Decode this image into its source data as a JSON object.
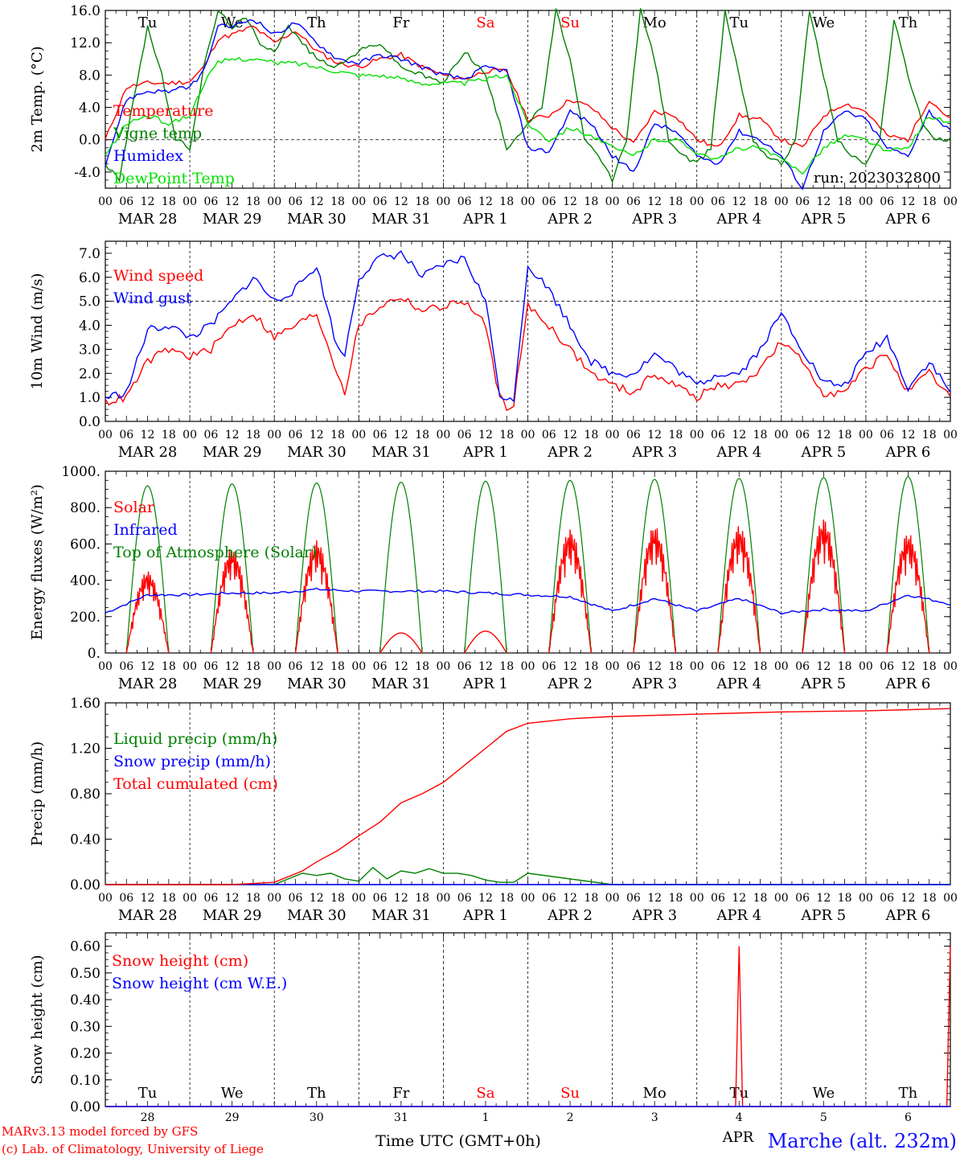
{
  "run_label": "run: 2023032800",
  "footer": {
    "model_line1": "MARv3.13 model forced by GFS",
    "model_line2": "(c) Lab. of Climatology, University of Liege",
    "xlabel": "Time UTC (GMT+0h)",
    "station": "Marche (alt. 232m)",
    "month_label": "APR"
  },
  "colors": {
    "red": "#ff0000",
    "green": "#008000",
    "blue": "#0000ff",
    "lightgreen": "#00e000",
    "weekend": "#ff0000",
    "axis": "#000000"
  },
  "time_axis": {
    "hour_labels": [
      "00",
      "06",
      "12",
      "18"
    ],
    "end_label": "00",
    "days": [
      {
        "date": "MAR 28",
        "num": "28",
        "weekday": "Tu",
        "weekend": false
      },
      {
        "date": "MAR 29",
        "num": "29",
        "weekday": "We",
        "weekend": false
      },
      {
        "date": "MAR 30",
        "num": "30",
        "weekday": "Th",
        "weekend": false
      },
      {
        "date": "MAR 31",
        "num": "31",
        "weekday": "Fr",
        "weekend": false
      },
      {
        "date": "APR  1",
        "num": "1",
        "weekday": "Sa",
        "weekend": true
      },
      {
        "date": "APR  2",
        "num": "2",
        "weekday": "Su",
        "weekend": true
      },
      {
        "date": "APR  3",
        "num": "3",
        "weekday": "Mo",
        "weekend": false
      },
      {
        "date": "APR  4",
        "num": "4",
        "weekday": "Tu",
        "weekend": false
      },
      {
        "date": "APR  5",
        "num": "5",
        "weekday": "We",
        "weekend": false
      },
      {
        "date": "APR  6",
        "num": "6",
        "weekday": "Th",
        "weekend": false
      }
    ]
  },
  "chart_data": [
    {
      "type": "line",
      "id": "temp",
      "ylabel": "2m Temp. (°C)",
      "ylim": [
        -6,
        16
      ],
      "yticks": [
        -4,
        0,
        4,
        8,
        12,
        16
      ],
      "ytick_labels": [
        "-4.0",
        "0.0",
        "4.0",
        "8.0",
        "12.0",
        "16.0"
      ],
      "ref_line": 0,
      "x_unit": "hours since MAR 28 00 UTC",
      "series": [
        {
          "name": "Temperature",
          "color": "red",
          "x": [
            0,
            6,
            12,
            18,
            24,
            28,
            32,
            36,
            42,
            48,
            54,
            60,
            66,
            72,
            78,
            84,
            90,
            96,
            102,
            108,
            114,
            120,
            126,
            132,
            138,
            144,
            150,
            156,
            162,
            168,
            174,
            180,
            186,
            192,
            198,
            204,
            210,
            216,
            222,
            228,
            234,
            240
          ],
          "y": [
            0,
            6.5,
            7,
            7,
            7.2,
            9,
            12.5,
            13,
            14,
            12,
            13.5,
            11,
            9.5,
            9,
            10,
            10.5,
            9,
            8,
            7.5,
            8.5,
            8.5,
            2.5,
            3,
            5,
            4,
            1.5,
            -0.5,
            3.5,
            3,
            0,
            -1,
            3,
            2.5,
            0,
            -1,
            3,
            4.5,
            3.5,
            0.5,
            0,
            5,
            2.5
          ]
        },
        {
          "name": "Vigne temp",
          "color": "green",
          "x": [
            0,
            4,
            8,
            12,
            16,
            20,
            24,
            28,
            32,
            36,
            40,
            44,
            48,
            52,
            56,
            60,
            66,
            72,
            78,
            84,
            90,
            96,
            102,
            108,
            114,
            120,
            124,
            128,
            132,
            136,
            140,
            144,
            148,
            152,
            156,
            160,
            164,
            168,
            172,
            176,
            180,
            184,
            188,
            192,
            196,
            200,
            204,
            208,
            212,
            216,
            220,
            224,
            228,
            232,
            236,
            240
          ],
          "y": [
            -3,
            -5,
            5,
            14,
            8,
            0,
            -1,
            9,
            16,
            14,
            15,
            12,
            11,
            14,
            12,
            10,
            9,
            11,
            12,
            9,
            8,
            7,
            11,
            8,
            -1,
            2,
            4,
            16,
            10,
            0,
            -2,
            -5,
            0,
            16,
            10,
            0,
            -2,
            -3,
            -1,
            16,
            8,
            0,
            -2,
            -3,
            0,
            16,
            8,
            0,
            -2,
            -3,
            0,
            15,
            8,
            2,
            0,
            0
          ]
        },
        {
          "name": "Humidex",
          "color": "blue",
          "x": [
            0,
            6,
            12,
            18,
            24,
            28,
            32,
            36,
            42,
            48,
            54,
            60,
            66,
            72,
            78,
            84,
            90,
            96,
            102,
            108,
            114,
            120,
            126,
            132,
            138,
            144,
            150,
            156,
            162,
            168,
            174,
            180,
            186,
            192,
            198,
            204,
            210,
            216,
            222,
            228,
            234,
            240
          ],
          "y": [
            -3,
            5,
            6,
            6,
            6.5,
            8.5,
            14,
            14,
            15,
            13,
            14.5,
            12,
            10,
            9.5,
            10.5,
            10,
            9,
            8,
            7.5,
            9,
            8.5,
            -1,
            -1.5,
            3.5,
            2,
            -2,
            -4,
            2,
            1,
            -2,
            -3,
            1,
            0,
            -2,
            -6,
            1,
            3.5,
            2.5,
            -1,
            -2,
            3.5,
            1
          ]
        },
        {
          "name": "DewPoint Temp",
          "color": "lightgreen",
          "x": [
            0,
            6,
            12,
            18,
            24,
            28,
            32,
            36,
            42,
            48,
            54,
            60,
            66,
            72,
            78,
            84,
            90,
            96,
            102,
            108,
            114,
            120,
            126,
            132,
            138,
            144,
            150,
            156,
            162,
            168,
            174,
            180,
            186,
            192,
            198,
            204,
            210,
            216,
            222,
            228,
            234,
            240
          ],
          "y": [
            -2,
            2,
            3,
            2,
            3,
            7,
            9.5,
            10,
            10,
            9.5,
            9.5,
            9,
            8.5,
            8,
            8,
            7.5,
            7,
            7,
            7,
            7.5,
            8,
            2,
            0,
            1.5,
            0.5,
            -1,
            -2,
            0,
            0,
            -1.5,
            -2.5,
            -1,
            -1,
            -2.5,
            -4,
            -1,
            0.5,
            0,
            -1.5,
            -1,
            3,
            2
          ]
        }
      ]
    },
    {
      "type": "line",
      "id": "wind",
      "ylabel": "10m Wind (m/s)",
      "ylim": [
        0,
        7.5
      ],
      "yticks": [
        0,
        1,
        2,
        3,
        4,
        5,
        6,
        7
      ],
      "ytick_labels": [
        "0.0",
        "1.0",
        "2.0",
        "3.0",
        "4.0",
        "5.0",
        "6.0",
        "7.0"
      ],
      "ref_line": 5,
      "x_unit": "hours since MAR 28 00 UTC",
      "series": [
        {
          "name": "Wind speed",
          "color": "red",
          "x": [
            0,
            6,
            12,
            18,
            24,
            30,
            36,
            42,
            48,
            54,
            60,
            66,
            68,
            72,
            78,
            84,
            90,
            96,
            102,
            108,
            112,
            114,
            116,
            120,
            126,
            132,
            138,
            144,
            150,
            156,
            162,
            168,
            174,
            180,
            186,
            192,
            198,
            204,
            210,
            216,
            222,
            228,
            234,
            240
          ],
          "y": [
            0.8,
            1,
            2.5,
            3,
            2.7,
            3,
            4,
            4.5,
            3.5,
            4,
            4.5,
            2,
            1.2,
            4,
            4.8,
            5.2,
            4.6,
            4.8,
            5,
            4,
            1,
            0.6,
            0.8,
            4.8,
            4,
            3,
            2,
            1.5,
            1.2,
            2,
            1.5,
            1,
            1.5,
            1.5,
            2.2,
            3.3,
            2.5,
            1.2,
            1.2,
            2.2,
            2.8,
            1.2,
            2,
            1
          ]
        },
        {
          "name": "Wind gust",
          "color": "blue",
          "x": [
            0,
            6,
            12,
            18,
            24,
            30,
            36,
            42,
            48,
            54,
            60,
            66,
            68,
            72,
            78,
            84,
            90,
            96,
            102,
            108,
            112,
            114,
            116,
            120,
            126,
            132,
            138,
            144,
            150,
            156,
            162,
            168,
            174,
            180,
            186,
            192,
            198,
            204,
            210,
            216,
            222,
            228,
            234,
            240
          ],
          "y": [
            1,
            1.2,
            3.8,
            4,
            3.5,
            4,
            5,
            6,
            5,
            5.5,
            6.5,
            3,
            2.8,
            6,
            6.8,
            7,
            6,
            6.5,
            6.8,
            5,
            1.2,
            0.8,
            1,
            6.5,
            5.5,
            4,
            2.5,
            2,
            2,
            2.8,
            2.2,
            1.5,
            2,
            2,
            3,
            4.5,
            3,
            1.6,
            1.5,
            2.8,
            3.5,
            1.4,
            2.5,
            1.2
          ]
        }
      ]
    },
    {
      "type": "line",
      "id": "energy",
      "ylabel": "Energy fluxes (W/m²)",
      "ylim": [
        0,
        1000
      ],
      "yticks": [
        0,
        200,
        400,
        600,
        800,
        1000
      ],
      "ytick_labels": [
        "0.",
        "200.",
        "400.",
        "600.",
        "800.",
        "1000."
      ],
      "ref_line": null,
      "x_unit": "hours since MAR 28 00 UTC",
      "toa_peaks": [
        920,
        930,
        935,
        940,
        945,
        950,
        955,
        960,
        965,
        970
      ],
      "solar_peaks": [
        450,
        580,
        620,
        110,
        120,
        680,
        700,
        700,
        740,
        660
      ],
      "series": [
        {
          "name": "Solar",
          "color": "red"
        },
        {
          "name": "Infrared",
          "color": "blue",
          "x": [
            0,
            12,
            24,
            36,
            48,
            60,
            72,
            84,
            96,
            108,
            120,
            132,
            144,
            156,
            168,
            180,
            192,
            204,
            216,
            228,
            240
          ],
          "y": [
            220,
            320,
            320,
            330,
            330,
            350,
            340,
            340,
            340,
            330,
            320,
            310,
            230,
            300,
            230,
            300,
            220,
            240,
            230,
            320,
            270
          ]
        },
        {
          "name": "Top of Atmosphere (Solar)",
          "color": "green"
        }
      ]
    },
    {
      "type": "line",
      "id": "precip",
      "ylabel": "Precip (mm/h)",
      "ylim": [
        0,
        1.6
      ],
      "yticks": [
        0,
        0.4,
        0.8,
        1.2,
        1.6
      ],
      "ytick_labels": [
        "0.00",
        "0.40",
        "0.80",
        "1.20",
        "1.60"
      ],
      "ref_line": null,
      "x_unit": "hours since MAR 28 00 UTC",
      "series": [
        {
          "name": "Liquid precip (mm/h)",
          "color": "green",
          "x": [
            0,
            48,
            52,
            56,
            60,
            64,
            68,
            72,
            76,
            80,
            84,
            88,
            92,
            96,
            100,
            104,
            108,
            112,
            116,
            120,
            144,
            240
          ],
          "y": [
            0,
            0,
            0.05,
            0.1,
            0.08,
            0.1,
            0.05,
            0.03,
            0.15,
            0.05,
            0.12,
            0.1,
            0.14,
            0.1,
            0.1,
            0.08,
            0.04,
            0.02,
            0.02,
            0.1,
            0,
            0
          ]
        },
        {
          "name": "Snow precip (mm/h)",
          "color": "blue",
          "x": [
            0,
            240
          ],
          "y": [
            0,
            0
          ]
        },
        {
          "name": "Total cumulated (cm)",
          "color": "red",
          "x": [
            0,
            36,
            48,
            56,
            60,
            66,
            72,
            78,
            84,
            90,
            96,
            102,
            108,
            114,
            120,
            132,
            144,
            168,
            192,
            216,
            240
          ],
          "y": [
            0,
            0,
            0.02,
            0.12,
            0.2,
            0.3,
            0.43,
            0.55,
            0.72,
            0.8,
            0.9,
            1.05,
            1.2,
            1.35,
            1.42,
            1.46,
            1.48,
            1.5,
            1.52,
            1.53,
            1.55
          ]
        }
      ]
    },
    {
      "type": "line",
      "id": "snow",
      "ylabel": "Snow height (cm)",
      "ylim": [
        0,
        0.65
      ],
      "yticks": [
        0,
        0.1,
        0.2,
        0.3,
        0.4,
        0.5,
        0.6
      ],
      "ytick_labels": [
        "0.00",
        "0.10",
        "0.20",
        "0.30",
        "0.40",
        "0.50",
        "0.60"
      ],
      "ref_line": null,
      "x_unit": "hours since MAR 28 00 UTC",
      "series": [
        {
          "name": "Snow height (cm)",
          "color": "red",
          "x": [
            0,
            179,
            180,
            181,
            239,
            240
          ],
          "y": [
            0,
            0,
            0.6,
            0,
            0,
            0.6
          ]
        },
        {
          "name": "Snow height (cm W.E.)",
          "color": "blue",
          "x": [
            0,
            240
          ],
          "y": [
            0,
            0
          ]
        }
      ]
    }
  ]
}
